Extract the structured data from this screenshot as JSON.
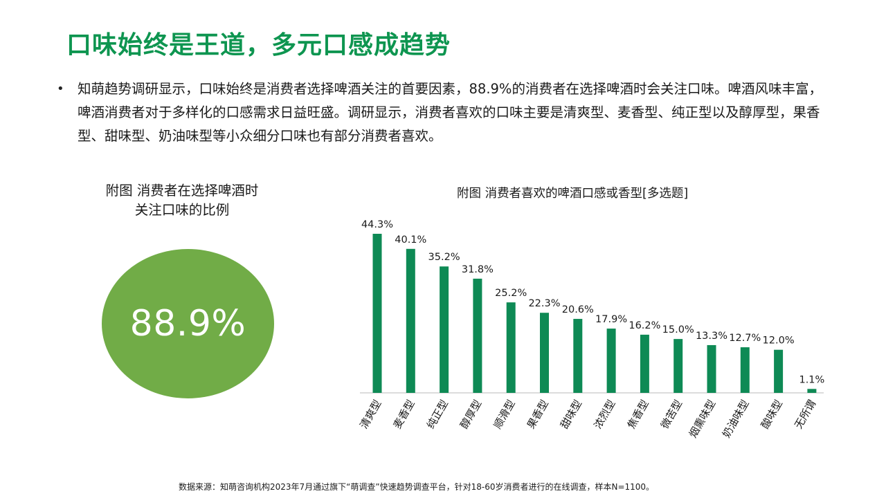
{
  "header": {
    "title": "口味始终是王道，多元口感成趋势"
  },
  "intro": {
    "bullet": "•",
    "text": "知萌趋势调研显示，口味始终是消费者选择啤酒关注的首要因素，88.9%的消费者在选择啤酒时会关注口味。啤酒风味丰富，啤酒消费者对于多样化的口感需求日益旺盛。调研显示，消费者喜欢的口味主要是清爽型、麦香型、纯正型以及醇厚型，果香型、甜味型、奶油味型等小众细分口味也有部分消费者喜欢。"
  },
  "left_figure": {
    "title_line1": "附图 消费者在选择啤酒时",
    "title_line2": "关注口味的比例",
    "value_label": "88.9%",
    "color": "#71ac47"
  },
  "chart_data": {
    "type": "bar",
    "title": "附图 消费者喜欢的啤酒口感或香型[多选题]",
    "categories": [
      "清爽型",
      "麦香型",
      "纯正型",
      "醇厚型",
      "顺滑型",
      "果香型",
      "甜味型",
      "浓烈型",
      "焦香型",
      "微苦型",
      "烟熏味型",
      "奶油味型",
      "酸味型",
      "无所谓"
    ],
    "values": [
      44.3,
      40.1,
      35.2,
      31.8,
      25.2,
      22.3,
      20.6,
      17.9,
      16.2,
      15.0,
      13.3,
      12.7,
      12.0,
      1.1
    ],
    "data_labels": [
      "44.3%",
      "40.1%",
      "35.2%",
      "31.8%",
      "25.2%",
      "22.3%",
      "20.6%",
      "17.9%",
      "16.2%",
      "15.0%",
      "13.3%",
      "12.7%",
      "12.0%",
      "1.1%"
    ],
    "unit": "%",
    "bar_color": "#0e8a55",
    "axis_color": "#c8c8c8",
    "xlabel": "",
    "ylabel": "",
    "ylim": [
      0,
      50
    ],
    "grid": false,
    "legend": "none"
  },
  "footer": {
    "source": "数据来源：知萌咨询机构2023年7月通过旗下“萌调查”快速趋势调查平台，针对18-60岁消费者进行的在线调查，样本N=1100。"
  }
}
